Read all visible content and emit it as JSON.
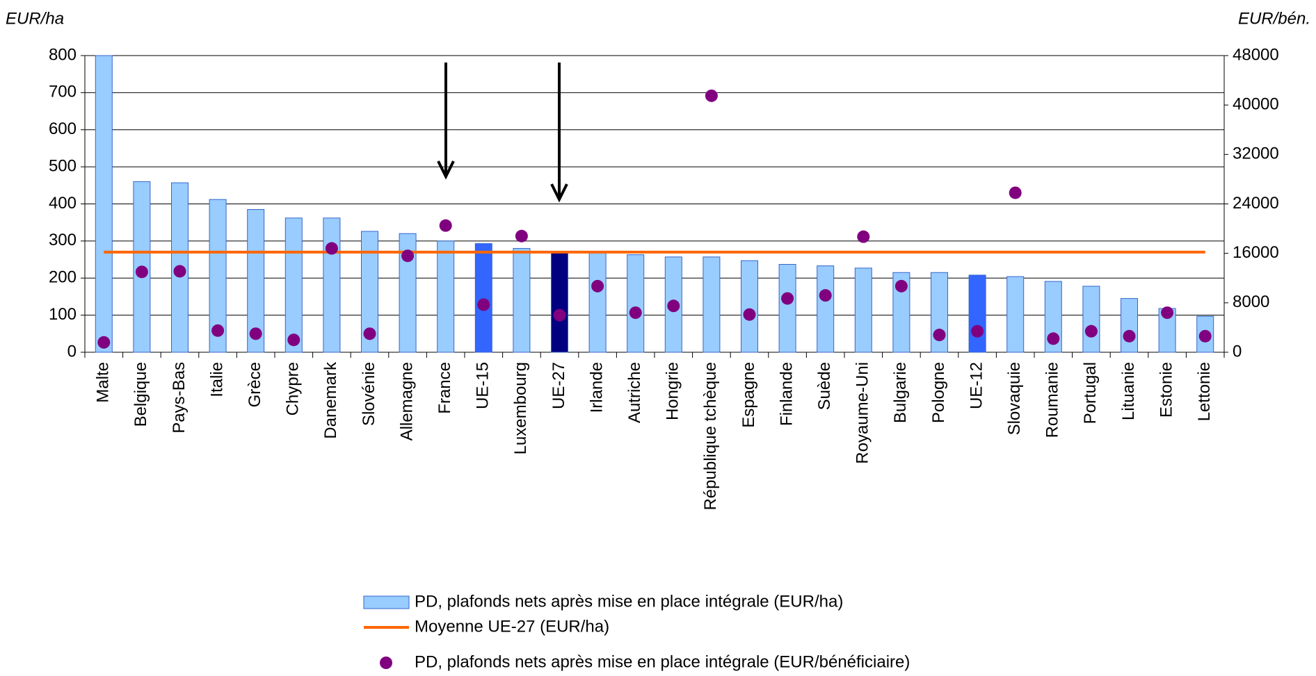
{
  "chart_data": {
    "type": "bar",
    "y_label": "EUR/ha",
    "y2_label": "EUR/bén.",
    "categories": [
      "Malte",
      "Belgique",
      "Pays-Bas",
      "Italie",
      "Grèce",
      "Chypre",
      "Danemark",
      "Slovénie",
      "Allemagne",
      "France",
      "UE-15",
      "Luxembourg",
      "UE-27",
      "Irlande",
      "Autriche",
      "Hongrie",
      "République tchèque",
      "Espagne",
      "Finlande",
      "Suède",
      "Royaume-Uni",
      "Bulgarie",
      "Pologne",
      "UE-12",
      "Slovaquie",
      "Roumanie",
      "Portugal",
      "Lituanie",
      "Estonie",
      "Lettonie"
    ],
    "series": [
      {
        "name": "PD, plafonds nets après mise en place intégrale (EUR/ha)",
        "type": "bar",
        "color": "#99ccff",
        "edge": "#3366cc",
        "point_colors": {
          "10": "#3366ff",
          "12": "#000080",
          "23": "#3366ff"
        },
        "values": [
          800,
          460,
          457,
          412,
          385,
          362,
          362,
          326,
          320,
          300,
          293,
          280,
          270,
          270,
          263,
          257,
          257,
          247,
          237,
          233,
          227,
          215,
          215,
          208,
          204,
          191,
          178,
          145,
          118,
          97
        ]
      },
      {
        "name": "Moyenne UE-27 (EUR/ha)",
        "type": "line",
        "color": "#ff6600",
        "values": [
          270,
          270,
          270,
          270,
          270,
          270,
          270,
          270,
          270,
          270,
          270,
          270,
          270,
          270,
          270,
          270,
          270,
          270,
          270,
          270,
          270,
          270,
          270,
          270,
          270,
          270,
          270,
          270,
          270,
          270
        ]
      },
      {
        "name": "PD, plafonds nets après mise en place intégrale (EUR/bénéficiaire)",
        "type": "scatter",
        "axis": "y2",
        "color": "#800080",
        "values": [
          1600,
          13000,
          13100,
          3500,
          3000,
          2000,
          16800,
          3000,
          15600,
          20500,
          7700,
          18800,
          6000,
          10700,
          6400,
          7500,
          41500,
          6100,
          8700,
          9200,
          18700,
          10700,
          2800,
          3400,
          25800,
          2200,
          3400,
          2600,
          6400,
          2600
        ]
      }
    ],
    "ylim": [
      0,
      800
    ],
    "yticks": [
      0,
      100,
      200,
      300,
      400,
      500,
      600,
      700,
      800
    ],
    "y2lim": [
      0,
      48000
    ],
    "y2ticks": [
      0,
      8000,
      16000,
      24000,
      32000,
      40000,
      48000
    ],
    "grid": true
  }
}
